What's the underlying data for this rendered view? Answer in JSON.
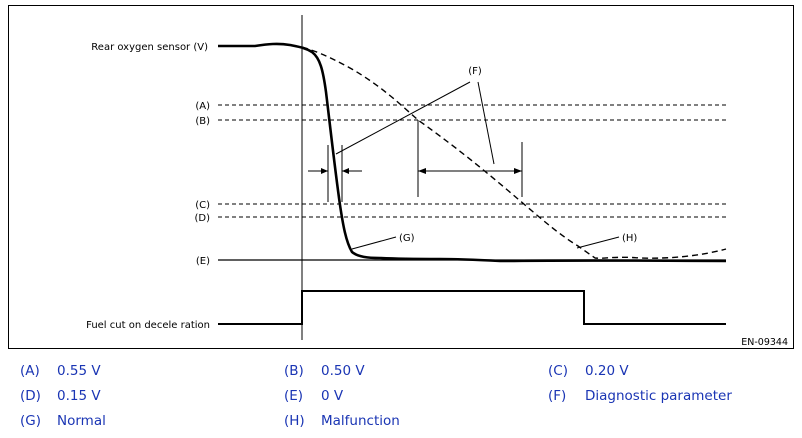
{
  "diagram": {
    "signal_label": "Rear oxygen sensor (V)",
    "fuel_cut_label": "Fuel cut on decele ration",
    "ref_code": "EN-09344",
    "levels": [
      "(A)",
      "(B)",
      "(C)",
      "(D)",
      "(E)"
    ],
    "callouts": {
      "f": "(F)",
      "g": "(G)",
      "h": "(H)"
    }
  },
  "legend": [
    {
      "key": "(A)",
      "value": "0.55 V"
    },
    {
      "key": "(B)",
      "value": "0.50 V"
    },
    {
      "key": "(C)",
      "value": "0.20 V"
    },
    {
      "key": "(D)",
      "value": "0.15 V"
    },
    {
      "key": "(E)",
      "value": "0 V"
    },
    {
      "key": "(F)",
      "value": "Diagnostic parameter"
    },
    {
      "key": "(G)",
      "value": "Normal"
    },
    {
      "key": "(H)",
      "value": "Malfunction"
    }
  ]
}
